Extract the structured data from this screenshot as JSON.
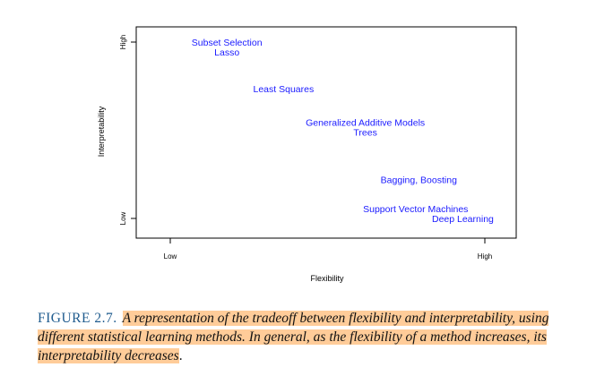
{
  "chart_data": {
    "type": "scatter",
    "title": "",
    "xlabel": "Flexibility",
    "ylabel": "Interpretability",
    "x_ticks": [
      "Low",
      "High"
    ],
    "y_ticks": [
      "Low",
      "High"
    ],
    "xlim": [
      0,
      1
    ],
    "ylim": [
      0,
      1
    ],
    "grid": false,
    "points": [
      {
        "label": "Subset Selection",
        "x": 0.18,
        "y": 1.0
      },
      {
        "label": "Lasso",
        "x": 0.18,
        "y": 0.945
      },
      {
        "label": "Least Squares",
        "x": 0.36,
        "y": 0.735
      },
      {
        "label": "Generalized Additive Models",
        "x": 0.62,
        "y": 0.545
      },
      {
        "label": "Trees",
        "x": 0.62,
        "y": 0.49
      },
      {
        "label": "Bagging, Boosting",
        "x": 0.79,
        "y": 0.22
      },
      {
        "label": "Support Vector Machines",
        "x": 0.78,
        "y": 0.055
      },
      {
        "label": "Deep Learning",
        "x": 0.93,
        "y": 0.0
      }
    ],
    "label_color": "#1a1aff"
  },
  "caption": {
    "figure_number": "FIGURE 2.7.",
    "text": "A representation of the tradeoff between flexibility and interpretability, using different statistical learning methods. In general, as the flexibility of a method increases, its interpretability decreases",
    "end": ".",
    "highlight_color": "#ffcc99",
    "number_color": "#1f5b8e"
  }
}
